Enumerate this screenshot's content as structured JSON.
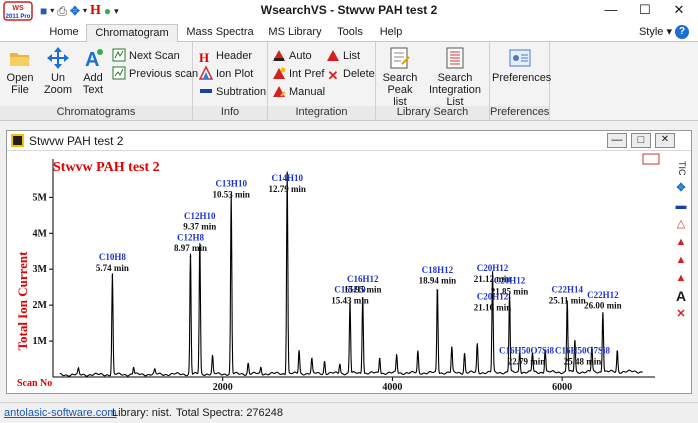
{
  "window": {
    "title": "WsearchVS - Stwvw PAH test 2",
    "logo": "WS 2011 Pro",
    "min_label": "—",
    "max_label": "☐",
    "close_label": "✕"
  },
  "quick_access": [
    {
      "name": "save-icon",
      "glyph": "💾"
    },
    {
      "name": "print-icon",
      "glyph": "⎙"
    },
    {
      "name": "move-icon",
      "glyph": "✥"
    },
    {
      "name": "header-icon",
      "glyph": "H"
    },
    {
      "name": "green-dot-icon",
      "glyph": "●"
    },
    {
      "name": "dropdown-icon",
      "glyph": "▾"
    }
  ],
  "tabs": [
    "Home",
    "Chromatogram",
    "Mass Spectra",
    "MS Library",
    "Tools",
    "Help"
  ],
  "active_tab": "Chromatogram",
  "style_menu": "Style",
  "help_glyph": "?",
  "ribbon": {
    "groups": [
      {
        "label": "Chromatograms",
        "big": [
          {
            "label": "Open File",
            "icon": "folder-icon"
          },
          {
            "label": "Un Zoom",
            "icon": "unzoom-icon"
          },
          {
            "label": "Add Text",
            "icon": "add-text-icon"
          }
        ],
        "small": [
          {
            "label": "Next Scan",
            "icon": "next-scan-icon"
          },
          {
            "label": "Previous scan",
            "icon": "previous-scan-icon"
          }
        ]
      },
      {
        "label": "Info",
        "small": [
          {
            "label": "Header",
            "icon": "header-icon"
          },
          {
            "label": "Ion Plot",
            "icon": "ion-plot-icon"
          },
          {
            "label": "Subtration",
            "icon": "subtraction-icon"
          }
        ]
      },
      {
        "label": "Integration",
        "small": [
          {
            "label": "Auto",
            "icon": "auto-integration-icon"
          },
          {
            "label": "List",
            "icon": "list-icon"
          },
          {
            "label": "Int Pref",
            "icon": "int-pref-icon"
          },
          {
            "label": "Delete",
            "icon": "delete-icon"
          },
          {
            "label": "Manual",
            "icon": "manual-integration-icon"
          }
        ]
      },
      {
        "label": "Library Search",
        "big": [
          {
            "label": "Search Peak list",
            "icon": "search-peak-list-icon"
          },
          {
            "label": "Search Integration List",
            "icon": "search-integration-list-icon"
          }
        ]
      },
      {
        "label": "Preferences",
        "big": [
          {
            "label": "Preferences",
            "icon": "preferences-icon"
          }
        ]
      }
    ]
  },
  "child_window": {
    "title": "Stwvw PAH test 2"
  },
  "chart_data": {
    "type": "line",
    "title": "Stwvw PAH test 2",
    "ylabel": "Total Ion Current",
    "xlabel": "Scan No",
    "xlim": [
      0,
      7000
    ],
    "ylim": [
      0,
      5900000
    ],
    "x_ticks": [
      2000,
      4000,
      6000
    ],
    "y_ticks": [
      {
        "v": 1000000,
        "label": "1M"
      },
      {
        "v": 2000000,
        "label": "2M"
      },
      {
        "v": 3000000,
        "label": "3M"
      },
      {
        "v": 4000000,
        "label": "4M"
      },
      {
        "v": 5000000,
        "label": "5M"
      }
    ],
    "peaks": [
      {
        "scan": 700,
        "height": 2800000,
        "name": "C10H8",
        "rt": "5.74 min"
      },
      {
        "scan": 1620,
        "height": 3350000,
        "name": "C12H8",
        "rt": "8.97 min"
      },
      {
        "scan": 1730,
        "height": 3700000,
        "name": "C12H10",
        "rt": "9.37 min"
      },
      {
        "scan": 2100,
        "height": 5000000,
        "name": "C13H10",
        "rt": "10.53 min"
      },
      {
        "scan": 2760,
        "height": 5650000,
        "name": "C14H10",
        "rt": "12.79 min"
      },
      {
        "scan": 3500,
        "height": 2000000,
        "name": "C16H10",
        "rt": "15.43 min"
      },
      {
        "scan": 3650,
        "height": 2200000,
        "name": "C16H12",
        "rt": "15.95 min"
      },
      {
        "scan": 4530,
        "height": 2400000,
        "name": "C18H12",
        "rt": "18.94 min"
      },
      {
        "scan": 5180,
        "height": 2800000,
        "name": "C20H12",
        "rt": "21.12 min"
      },
      {
        "scan": 5380,
        "height": 2200000,
        "name": "C20H12",
        "rt": "21.85 min"
      },
      {
        "scan": 6060,
        "height": 2000000,
        "name": "C22H14",
        "rt": "25.11 min"
      },
      {
        "scan": 6480,
        "height": 1700000,
        "name": "C22H12",
        "rt": "26.00 min"
      }
    ],
    "visible_labels": [
      {
        "text": "C10H8",
        "color": "blue",
        "x": 700,
        "y": 3250000
      },
      {
        "text": "5.74 min",
        "color": "black",
        "x": 700,
        "y": 2950000
      },
      {
        "text": "C12H10",
        "color": "blue",
        "x": 1730,
        "y": 4400000
      },
      {
        "text": "9.37 min",
        "color": "black",
        "x": 1730,
        "y": 4100000
      },
      {
        "text": "C12H8",
        "color": "blue",
        "x": 1620,
        "y": 3800000
      },
      {
        "text": "8.97 min",
        "color": "black",
        "x": 1620,
        "y": 3500000
      },
      {
        "text": "C13H10",
        "color": "blue",
        "x": 2100,
        "y": 5300000
      },
      {
        "text": "10.53 min",
        "color": "black",
        "x": 2100,
        "y": 5000000
      },
      {
        "text": "C14H10",
        "color": "blue",
        "x": 2760,
        "y": 5450000
      },
      {
        "text": "12.79 min",
        "color": "black",
        "x": 2760,
        "y": 5150000
      },
      {
        "text": "C16H10",
        "color": "blue",
        "x": 3500,
        "y": 2350000
      },
      {
        "text": "15.43 min",
        "color": "black",
        "x": 3500,
        "y": 2050000
      },
      {
        "text": "C16H12",
        "color": "blue",
        "x": 3650,
        "y": 2650000
      },
      {
        "text": "15.95 min",
        "color": "black",
        "x": 3650,
        "y": 2350000
      },
      {
        "text": "C18H12",
        "color": "blue",
        "x": 4530,
        "y": 2900000
      },
      {
        "text": "18.94 min",
        "color": "black",
        "x": 4530,
        "y": 2600000
      },
      {
        "text": "C20H12",
        "color": "blue",
        "x": 5180,
        "y": 2950000
      },
      {
        "text": "21.12 min",
        "color": "black",
        "x": 5180,
        "y": 2650000
      },
      {
        "text": "C20H12",
        "color": "blue",
        "x": 5380,
        "y": 2600000
      },
      {
        "text": "21.85 min",
        "color": "black",
        "x": 5380,
        "y": 2300000
      },
      {
        "text": "C20H12",
        "color": "blue",
        "x": 5180,
        "y": 2150000
      },
      {
        "text": "21.16 min",
        "color": "black",
        "x": 5180,
        "y": 1850000
      },
      {
        "text": "C16H50O7Si8",
        "color": "blue",
        "x": 5580,
        "y": 650000
      },
      {
        "text": "22.79 min",
        "color": "black",
        "x": 5580,
        "y": 350000
      },
      {
        "text": "C22H14",
        "color": "blue",
        "x": 6060,
        "y": 2350000
      },
      {
        "text": "25.11 min",
        "color": "black",
        "x": 6060,
        "y": 2050000
      },
      {
        "text": "C22H12",
        "color": "blue",
        "x": 6480,
        "y": 2200000
      },
      {
        "text": "26.00 min",
        "color": "black",
        "x": 6480,
        "y": 1900000
      },
      {
        "text": "C16H50O7Si8",
        "color": "blue",
        "x": 6240,
        "y": 650000
      },
      {
        "text": "25.48 min",
        "color": "black",
        "x": 6240,
        "y": 350000
      }
    ],
    "noise_peaks": [
      [
        300,
        150000
      ],
      [
        950,
        200000
      ],
      [
        1200,
        120000
      ],
      [
        1880,
        500000
      ],
      [
        2300,
        300000
      ],
      [
        2450,
        180000
      ],
      [
        2900,
        650000
      ],
      [
        3050,
        400000
      ],
      [
        3200,
        350000
      ],
      [
        3380,
        280000
      ],
      [
        3850,
        450000
      ],
      [
        4050,
        520000
      ],
      [
        4300,
        600000
      ],
      [
        4700,
        700000
      ],
      [
        4850,
        550000
      ],
      [
        5000,
        800000
      ],
      [
        5500,
        600000
      ],
      [
        5650,
        550000
      ],
      [
        5800,
        650000
      ],
      [
        6150,
        900000
      ],
      [
        6350,
        700000
      ],
      [
        6650,
        600000
      ]
    ]
  },
  "side_tools": [
    {
      "name": "tic-label",
      "glyph": "TIC"
    },
    {
      "name": "move-icon",
      "glyph": "✥"
    },
    {
      "name": "subtraction-icon",
      "glyph": "▬"
    },
    {
      "name": "ion-plot-icon",
      "glyph": "△"
    },
    {
      "name": "auto-integration-icon",
      "glyph": "▲"
    },
    {
      "name": "int-pref-icon",
      "glyph": "▲"
    },
    {
      "name": "manual-integration-icon",
      "glyph": "▲"
    },
    {
      "name": "text-icon",
      "glyph": "A"
    },
    {
      "name": "delete-icon",
      "glyph": "✕"
    }
  ],
  "status": {
    "link": "antolasic-software.com",
    "library": "Library: nist.",
    "spectra": "Total Spectra: 276248"
  },
  "colors": {
    "accent": "#1b6fd1",
    "title_red": "#e00000",
    "label_blue": "#1a33cc"
  }
}
